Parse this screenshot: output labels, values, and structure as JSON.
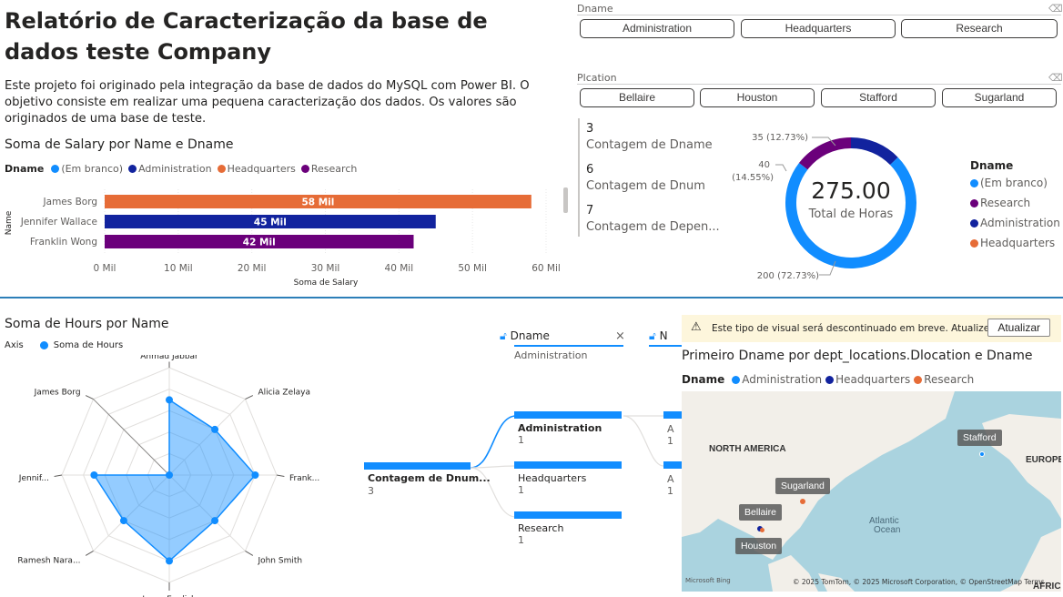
{
  "header": {
    "title": "Relatório de Caracterização da base de dados teste Company",
    "description": "Este projeto foi originado pela integração da base de dados do MySQL com Power BI. O objetivo consiste em realizar uma pequena caracterização dos dados. Os valores são originados de uma base de teste."
  },
  "colors": {
    "blank": "#118dff",
    "administration": "#12239e",
    "headquarters": "#e66c37",
    "research": "#6b007b",
    "accent": "#118dff"
  },
  "slicers": {
    "dname": {
      "title": "Dname",
      "options": [
        "Administration",
        "Headquarters",
        "Research"
      ]
    },
    "plocation": {
      "title": "Plcation",
      "options": [
        "Bellaire",
        "Houston",
        "Stafford",
        "Sugarland"
      ]
    }
  },
  "bar_chart": {
    "title": "Soma de Salary por Name e Dname",
    "legend_title": "Dname",
    "legend": [
      {
        "label": "(Em branco)",
        "color": "#118dff"
      },
      {
        "label": "Administration",
        "color": "#12239e"
      },
      {
        "label": "Headquarters",
        "color": "#e66c37"
      },
      {
        "label": "Research",
        "color": "#6b007b"
      }
    ],
    "ylabel": "Name",
    "xlabel": "Soma de Salary"
  },
  "cards": [
    {
      "value": "3",
      "label": "Contagem de Dname"
    },
    {
      "value": "6",
      "label": "Contagem de Dnum"
    },
    {
      "value": "7",
      "label": "Contagem de Depen..."
    }
  ],
  "donut": {
    "center_value": "275.00",
    "center_label": "Total de Horas",
    "legend_title": "Dname",
    "labels": [
      "200 (72.73%)",
      "40",
      "(14.55%)",
      "35 (12.73%)"
    ]
  },
  "radar": {
    "title": "Soma de Hours por Name",
    "legend_axis": "Axis",
    "legend_series": "Soma de Hours"
  },
  "decomposition": {
    "filter1_title": "Dname",
    "filter1_value": "Administration",
    "filter2_title": "N",
    "root_label": "Contagem de Dnum...",
    "root_value": "3",
    "nodes": [
      {
        "label": "Administration",
        "value": "1"
      },
      {
        "label": "Headquarters",
        "value": "1"
      },
      {
        "label": "Research",
        "value": "1"
      }
    ],
    "next_labels": [
      "A",
      "A"
    ],
    "next_values": [
      "1",
      "1"
    ]
  },
  "map_visual": {
    "warning": "Este tipo de visual será descontinuado em breve. Atualize...",
    "update_button": "Atualizar",
    "title": "Primeiro Dname por dept_locations.Dlocation e Dname",
    "legend_title": "Dname",
    "legend": [
      {
        "label": "Administration",
        "color": "#118dff"
      },
      {
        "label": "Headquarters",
        "color": "#12239e"
      },
      {
        "label": "Research",
        "color": "#e66c37"
      }
    ],
    "locations": [
      "Stafford",
      "Sugarland",
      "Bellaire",
      "Houston"
    ],
    "region_labels": [
      "NORTH AMERICA",
      "EUROPE",
      "Atlantic",
      "Ocean",
      "AFRICA"
    ],
    "attribution": "© 2025 TomTom, © 2025 Microsoft Corporation, © OpenStreetMap  Terms",
    "brand": "Microsoft Bing"
  },
  "chart_data": [
    {
      "type": "bar",
      "orientation": "horizontal",
      "title": "Soma de Salary por Name e Dname",
      "xlabel": "Soma de Salary",
      "ylabel": "Name",
      "categories": [
        "James Borg",
        "Jennifer Wallace",
        "Franklin Wong"
      ],
      "values": [
        58,
        45,
        42
      ],
      "value_labels": [
        "58 Mil",
        "45 Mil",
        "42 Mil"
      ],
      "category_dname": [
        "Headquarters",
        "Administration",
        "Research"
      ],
      "xticks": [
        "0 Mil",
        "10 Mil",
        "20 Mil",
        "30 Mil",
        "40 Mil",
        "50 Mil",
        "60 Mil"
      ],
      "xlim": [
        0,
        60
      ],
      "legend_position": "top-left"
    },
    {
      "type": "pie",
      "subtype": "donut",
      "series": [
        {
          "name": "(Em branco)",
          "value": 200
        },
        {
          "name": "Research",
          "value": 40
        },
        {
          "name": "Administration",
          "value": 35
        }
      ],
      "legend_position": "right"
    },
    {
      "type": "radar",
      "title": "Soma de Hours por Name",
      "categories": [
        "Ahmad Jabbar",
        "Alicia Zelaya",
        "Frank...",
        "John Smith",
        "Joyce English",
        "Ramesh Nara...",
        "Jennif...",
        "James Borg"
      ],
      "values": [
        35,
        30,
        40,
        30,
        40,
        30,
        35,
        0
      ],
      "ylim": [
        0,
        50
      ],
      "legend_position": "top-left"
    }
  ]
}
